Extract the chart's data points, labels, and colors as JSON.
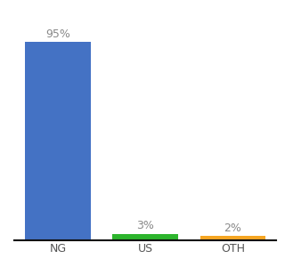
{
  "categories": [
    "NG",
    "US",
    "OTH"
  ],
  "values": [
    95,
    3,
    2
  ],
  "bar_colors": [
    "#4472c4",
    "#2db52d",
    "#f5a623"
  ],
  "labels": [
    "95%",
    "3%",
    "2%"
  ],
  "label_color": "#888888",
  "background_color": "#ffffff",
  "ylim": [
    0,
    105
  ],
  "bar_width": 0.75,
  "label_fontsize": 9,
  "tick_fontsize": 9,
  "axis_line_color": "#111111",
  "xlim": [
    -0.5,
    2.5
  ]
}
